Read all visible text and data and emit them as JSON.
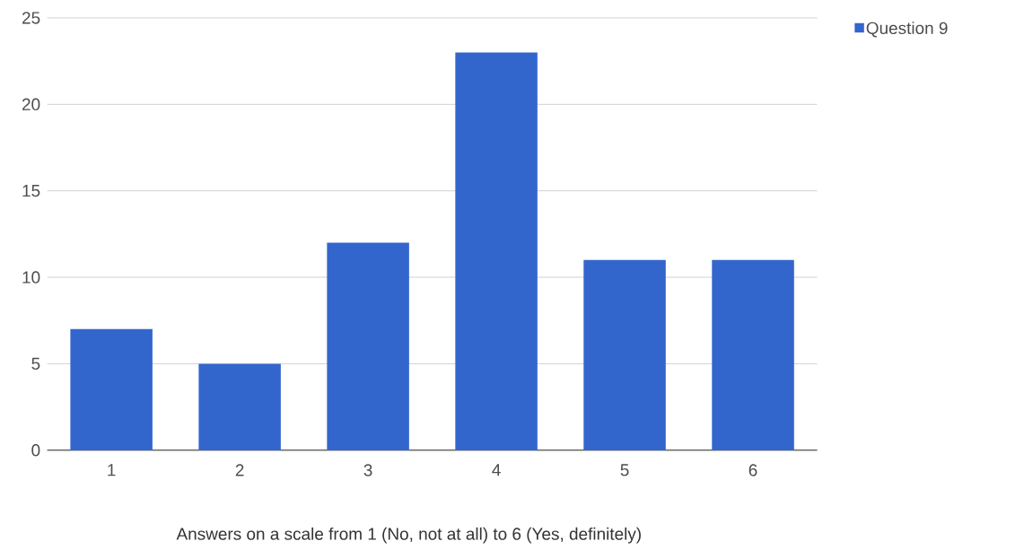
{
  "chart_data": {
    "type": "bar",
    "categories": [
      "1",
      "2",
      "3",
      "4",
      "5",
      "6"
    ],
    "series": [
      {
        "name": "Question 9",
        "color": "#3366cc",
        "values": [
          7,
          5,
          12,
          23,
          11,
          11
        ]
      }
    ],
    "xlabel": "Answers on a scale from 1 (No, not at all) to 6 (Yes, definitely)",
    "ylim": [
      0,
      25
    ],
    "yticks": [
      0,
      5,
      10,
      15,
      20,
      25
    ],
    "grid": "y",
    "legend": "top right"
  }
}
